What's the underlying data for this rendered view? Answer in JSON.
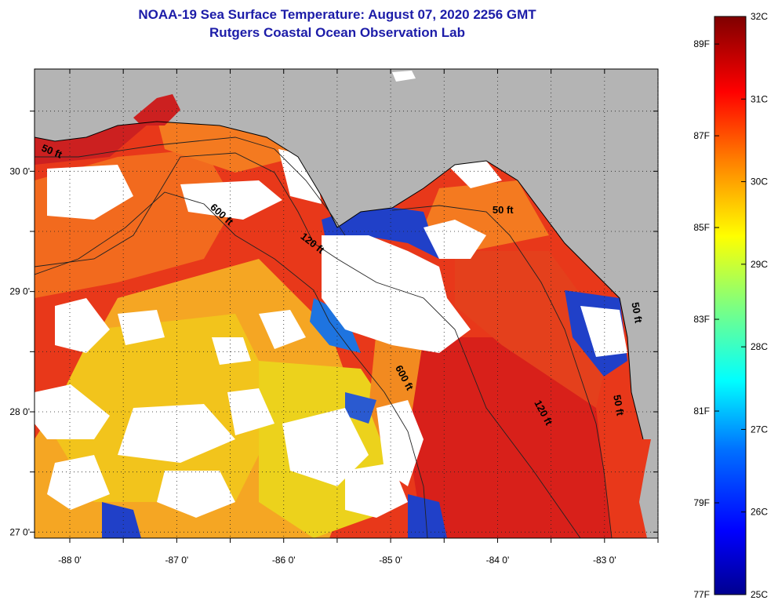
{
  "title": "NOAA-19 Sea Surface Temperature:  August 07, 2020 2256 GMT",
  "subtitle": "Rutgers Coastal Ocean Observation Lab",
  "colors": {
    "title": "#1c1ca8",
    "land": "#b4b4b4",
    "cloud": "#ffffff",
    "sea_warm": "#e8381a",
    "sea_hot": "#c8141a",
    "sea_orange": "#f47a20",
    "sea_yellow": "#f2c41c",
    "sea_cool": "#2040c8"
  },
  "chart_data": {
    "type": "heatmap",
    "title": "NOAA-19 Sea Surface Temperature:  August 07, 2020 2256 GMT",
    "subtitle": "Rutgers Coastal Ocean Observation Lab",
    "x_ticks": [
      {
        "value": -88,
        "label": "-88 0'"
      },
      {
        "value": -87,
        "label": "-87 0'"
      },
      {
        "value": -86,
        "label": "-86 0'"
      },
      {
        "value": -85,
        "label": "-85 0'"
      },
      {
        "value": -84,
        "label": "-84 0'"
      },
      {
        "value": -83,
        "label": "-83 0'"
      }
    ],
    "y_ticks": [
      {
        "value": 30,
        "label": "30 0'"
      },
      {
        "value": 29,
        "label": "29 0'"
      },
      {
        "value": 28,
        "label": "28 0'"
      },
      {
        "value": 27,
        "label": "27 0'"
      }
    ],
    "xlim": [
      -88.33,
      -82.5
    ],
    "ylim": [
      26.95,
      30.85
    ],
    "grid": true,
    "contour_labels": [
      {
        "text": "50 ft",
        "lon": -88.18,
        "lat": 30.14,
        "angle": 22
      },
      {
        "text": "600 ft",
        "lon": -86.6,
        "lat": 29.62,
        "angle": 42
      },
      {
        "text": "120 ft",
        "lon": -85.75,
        "lat": 29.38,
        "angle": 38
      },
      {
        "text": "50 ft",
        "lon": -83.95,
        "lat": 29.65,
        "angle": 0
      },
      {
        "text": "600 ft",
        "lon": -84.9,
        "lat": 28.27,
        "angle": 62
      },
      {
        "text": "120 ft",
        "lon": -83.6,
        "lat": 27.98,
        "angle": 62
      },
      {
        "text": "50 ft",
        "lon": -82.9,
        "lat": 28.05,
        "angle": 80
      },
      {
        "text": "50 ft",
        "lon": -82.73,
        "lat": 28.82,
        "angle": 80
      }
    ],
    "colorbar": {
      "celsius_range": [
        25,
        32
      ],
      "fahrenheit_range": [
        77,
        89.6
      ],
      "celsius_ticks": [
        {
          "value": 32,
          "label": "32C"
        },
        {
          "value": 31,
          "label": "31C"
        },
        {
          "value": 30,
          "label": "30C"
        },
        {
          "value": 29,
          "label": "29C"
        },
        {
          "value": 28,
          "label": "28C"
        },
        {
          "value": 27,
          "label": "27C"
        },
        {
          "value": 26,
          "label": "26C"
        },
        {
          "value": 25,
          "label": "25C"
        }
      ],
      "fahrenheit_ticks": [
        {
          "value": 89,
          "label": "89F"
        },
        {
          "value": 87,
          "label": "87F"
        },
        {
          "value": 85,
          "label": "85F"
        },
        {
          "value": 83,
          "label": "83F"
        },
        {
          "value": 81,
          "label": "81F"
        },
        {
          "value": 79,
          "label": "79F"
        },
        {
          "value": 77,
          "label": "77F"
        }
      ]
    }
  }
}
